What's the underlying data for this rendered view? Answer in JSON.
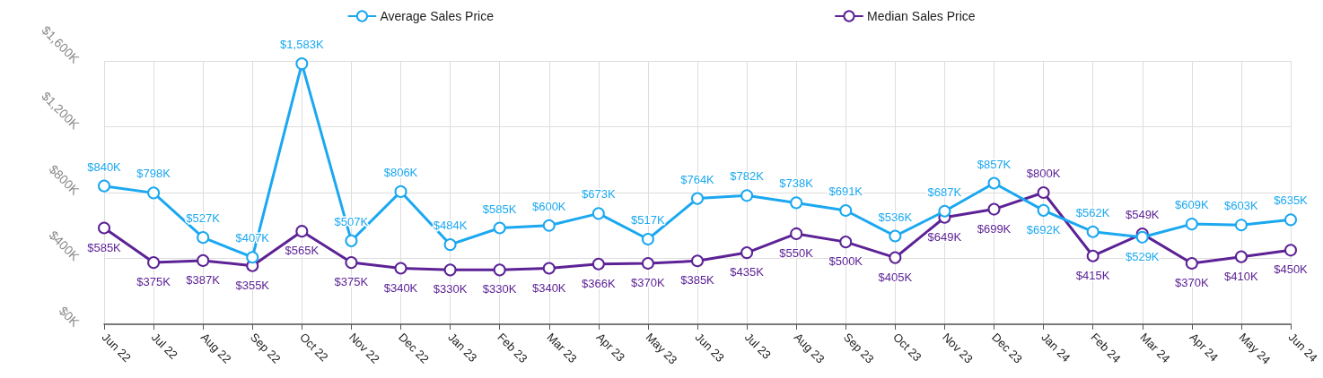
{
  "chart_data": {
    "type": "line",
    "categories": [
      "Jun 22",
      "Jul 22",
      "Aug 22",
      "Sep 22",
      "Oct 22",
      "Nov 22",
      "Dec 22",
      "Jan 23",
      "Feb 23",
      "Mar 23",
      "Apr 23",
      "May 23",
      "Jun 23",
      "Jul 23",
      "Aug 23",
      "Sep 23",
      "Oct 23",
      "Nov 23",
      "Dec 23",
      "Jan 24",
      "Feb 24",
      "Mar 24",
      "Apr 24",
      "May 24",
      "Jun 24"
    ],
    "series": [
      {
        "name": "Average Sales Price",
        "color": "#1ba8f0",
        "values": [
          840,
          798,
          527,
          407,
          1583,
          507,
          806,
          484,
          585,
          600,
          673,
          517,
          764,
          782,
          738,
          691,
          536,
          687,
          857,
          692,
          562,
          529,
          609,
          603,
          635
        ],
        "value_labels": [
          "$840K",
          "$798K",
          "$527K",
          "$407K",
          "$1,583K",
          "$507K",
          "$806K",
          "$484K",
          "$585K",
          "$600K",
          "$673K",
          "$517K",
          "$764K",
          "$782K",
          "$738K",
          "$691K",
          "$536K",
          "$687K",
          "$857K",
          "$692K",
          "$562K",
          "$529K",
          "$609K",
          "$603K",
          "$635K"
        ]
      },
      {
        "name": "Median Sales Price",
        "color": "#5c2296",
        "values": [
          585,
          375,
          387,
          355,
          565,
          375,
          340,
          330,
          330,
          340,
          366,
          370,
          385,
          435,
          550,
          500,
          405,
          649,
          699,
          800,
          415,
          549,
          370,
          410,
          450
        ],
        "value_labels": [
          "$585K",
          "$375K",
          "$387K",
          "$355K",
          "$565K",
          "$375K",
          "$340K",
          "$330K",
          "$330K",
          "$340K",
          "$366K",
          "$370K",
          "$385K",
          "$435K",
          "$550K",
          "$500K",
          "$405K",
          "$649K",
          "$699K",
          "$800K",
          "$415K",
          "$549K",
          "$370K",
          "$410K",
          "$450K"
        ]
      }
    ],
    "ylim": [
      0,
      1600
    ],
    "yticks": [
      {
        "value": 0,
        "label": "$0K"
      },
      {
        "value": 400,
        "label": "$400K"
      },
      {
        "value": 800,
        "label": "$800K"
      },
      {
        "value": 1200,
        "label": "$1,200K"
      },
      {
        "value": 1600,
        "label": "$1,600K"
      }
    ],
    "grid": true,
    "legend": "top",
    "marker": "circle",
    "line_style": "solid"
  }
}
